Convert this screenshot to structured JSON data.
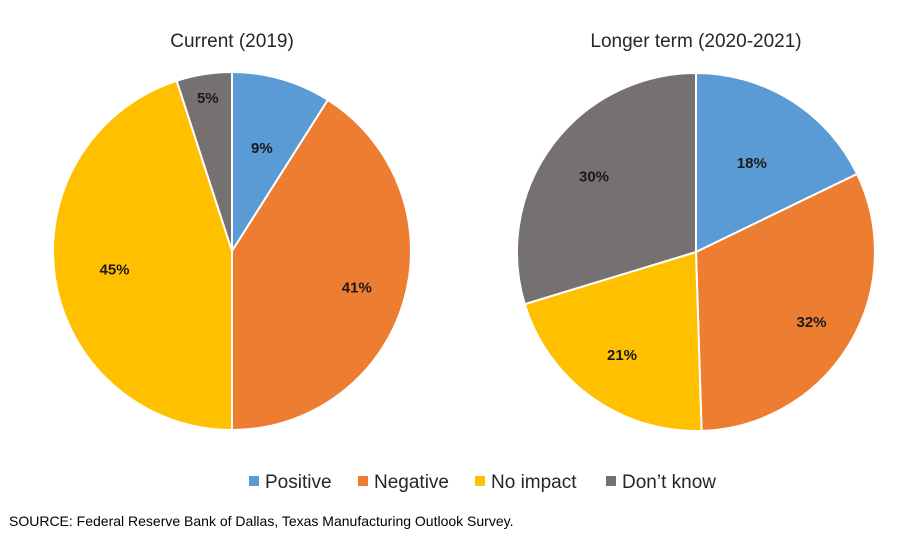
{
  "chart_data": [
    {
      "type": "pie",
      "title": "Current (2019)",
      "categories": [
        "Positive",
        "Negative",
        "No impact",
        "Don’t know"
      ],
      "values": [
        9,
        41,
        45,
        5
      ],
      "labels": [
        "9%",
        "41%",
        "45%",
        "5%"
      ]
    },
    {
      "type": "pie",
      "title": "Longer term (2020-2021)",
      "categories": [
        "Positive",
        "Negative",
        "No impact",
        "Don’t know"
      ],
      "values": [
        18,
        32,
        21,
        30
      ],
      "labels": [
        "18%",
        "32%",
        "21%",
        "30%"
      ]
    }
  ],
  "legend": {
    "placement": "bottom",
    "items": [
      {
        "label": "Positive",
        "color": "#5B9BD5"
      },
      {
        "label": "Negative",
        "color": "#ED7D31"
      },
      {
        "label": "No impact",
        "color": "#FFC000"
      },
      {
        "label": "Don’t know",
        "color": "#767171"
      }
    ]
  },
  "source_note": "SOURCE: Federal Reserve Bank of Dallas, Texas Manufacturing Outlook Survey."
}
